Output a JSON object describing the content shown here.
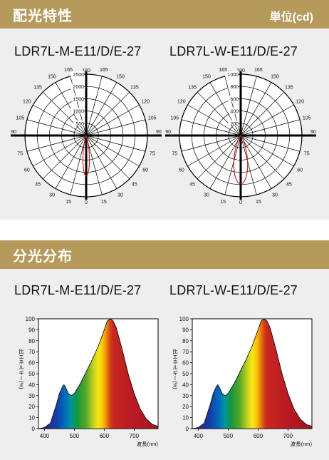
{
  "section_light_distribution": {
    "title": "配光特性",
    "unit": "単位(cd)"
  },
  "section_spectrum": {
    "title": "分光分布"
  },
  "models": [
    "LDR7L-M-E11/D/E-27",
    "LDR7L-W-E11/D/E-27"
  ],
  "colors": {
    "band": "#b59a5b",
    "panel": "#eeeeee",
    "curve": "#cc2222"
  },
  "chart_data": [
    {
      "type": "polar",
      "model": "LDR7L-M-E11/D/E-27",
      "angle_labels": [
        "180",
        "165",
        "150",
        "135",
        "120",
        "105",
        "90",
        "75",
        "60",
        "45",
        "30",
        "15",
        "0",
        "15",
        "30",
        "45",
        "60",
        "75",
        "90",
        "105",
        "120",
        "135",
        "150",
        "165"
      ],
      "radial_labels": [
        "500",
        "1000",
        "1500",
        "2000",
        "2500"
      ],
      "r_max": 2500,
      "beam": {
        "peak_cd": 1650,
        "half_angle_deg": 9
      }
    },
    {
      "type": "polar",
      "model": "LDR7L-W-E11/D/E-27",
      "angle_labels": [
        "180",
        "165",
        "150",
        "135",
        "120",
        "105",
        "90",
        "75",
        "60",
        "45",
        "30",
        "15",
        "0",
        "15",
        "30",
        "45",
        "60",
        "75",
        "90",
        "105",
        "120",
        "135",
        "150",
        "165"
      ],
      "radial_labels": [
        "200",
        "400",
        "600",
        "800",
        "1000"
      ],
      "r_max": 1000,
      "beam": {
        "peak_cd": 790,
        "half_angle_deg": 16
      }
    },
    {
      "type": "area",
      "model": "LDR7L-M-E11/D/E-27",
      "ylabel": "比エネルギー(%)",
      "xlabel": "波長(nm)",
      "x_ticks": [
        "400",
        "500",
        "600",
        "700"
      ],
      "y_ticks": [
        "0",
        "10",
        "20",
        "30",
        "40",
        "50",
        "60",
        "70",
        "80",
        "90",
        "100"
      ],
      "xlim": [
        380,
        780
      ],
      "ylim": [
        0,
        100
      ],
      "x": [
        380,
        400,
        420,
        440,
        450,
        460,
        465,
        470,
        480,
        490,
        500,
        520,
        540,
        560,
        580,
        600,
        610,
        620,
        630,
        640,
        660,
        680,
        700,
        720,
        740,
        760,
        780
      ],
      "y": [
        0,
        1,
        5,
        22,
        32,
        38,
        40,
        38,
        32,
        30,
        32,
        41,
        52,
        63,
        75,
        90,
        98,
        100,
        98,
        92,
        72,
        50,
        32,
        18,
        9,
        4,
        2
      ]
    },
    {
      "type": "area",
      "model": "LDR7L-W-E11/D/E-27",
      "ylabel": "比エネルギー(%)",
      "xlabel": "波長(nm)",
      "x_ticks": [
        "400",
        "500",
        "600",
        "700"
      ],
      "y_ticks": [
        "0",
        "10",
        "20",
        "30",
        "40",
        "50",
        "60",
        "70",
        "80",
        "90",
        "100"
      ],
      "xlim": [
        380,
        780
      ],
      "ylim": [
        0,
        100
      ],
      "x": [
        380,
        400,
        420,
        440,
        450,
        460,
        465,
        470,
        480,
        490,
        500,
        520,
        540,
        560,
        580,
        600,
        610,
        620,
        630,
        640,
        660,
        680,
        700,
        720,
        740,
        760,
        780
      ],
      "y": [
        0,
        1,
        5,
        22,
        32,
        38,
        40,
        38,
        32,
        30,
        32,
        41,
        52,
        63,
        75,
        90,
        98,
        100,
        98,
        92,
        72,
        50,
        32,
        18,
        9,
        4,
        2
      ]
    }
  ]
}
